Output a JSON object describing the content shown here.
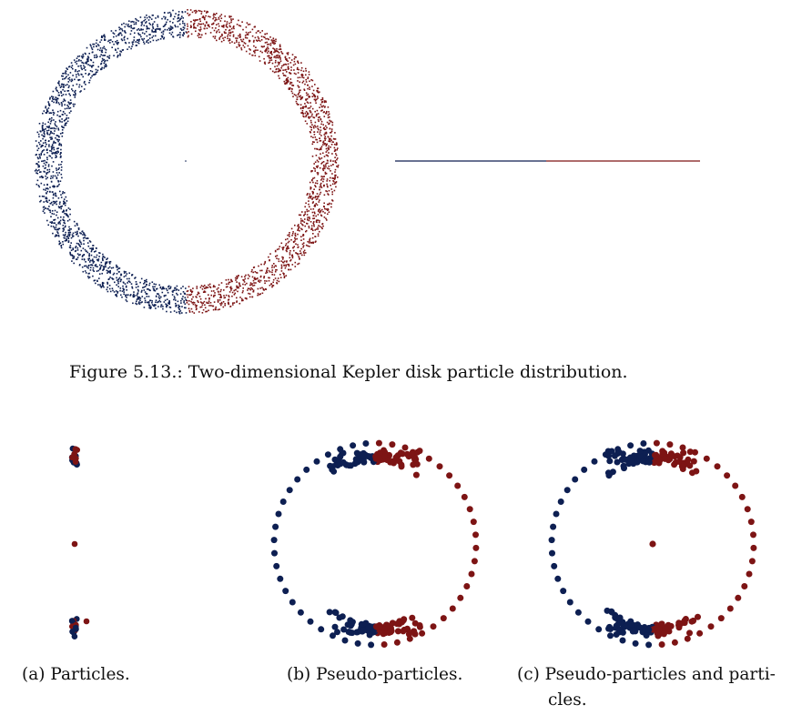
{
  "figure_5_13": {
    "caption": "Figure 5.13.: Two-dimensional Kepler disk particle distribution.",
    "panels": [
      "ring-view",
      "edge-on-view"
    ]
  },
  "figure_panels": {
    "a": {
      "caption": "(a) Particles."
    },
    "b": {
      "caption": "(b) Pseudo-particles."
    },
    "c": {
      "caption_line1": "(c) Pseudo-particles and parti-",
      "caption_line2": "cles."
    }
  },
  "colors": {
    "left_half": "#0d1f52",
    "right_half": "#7d1414"
  }
}
